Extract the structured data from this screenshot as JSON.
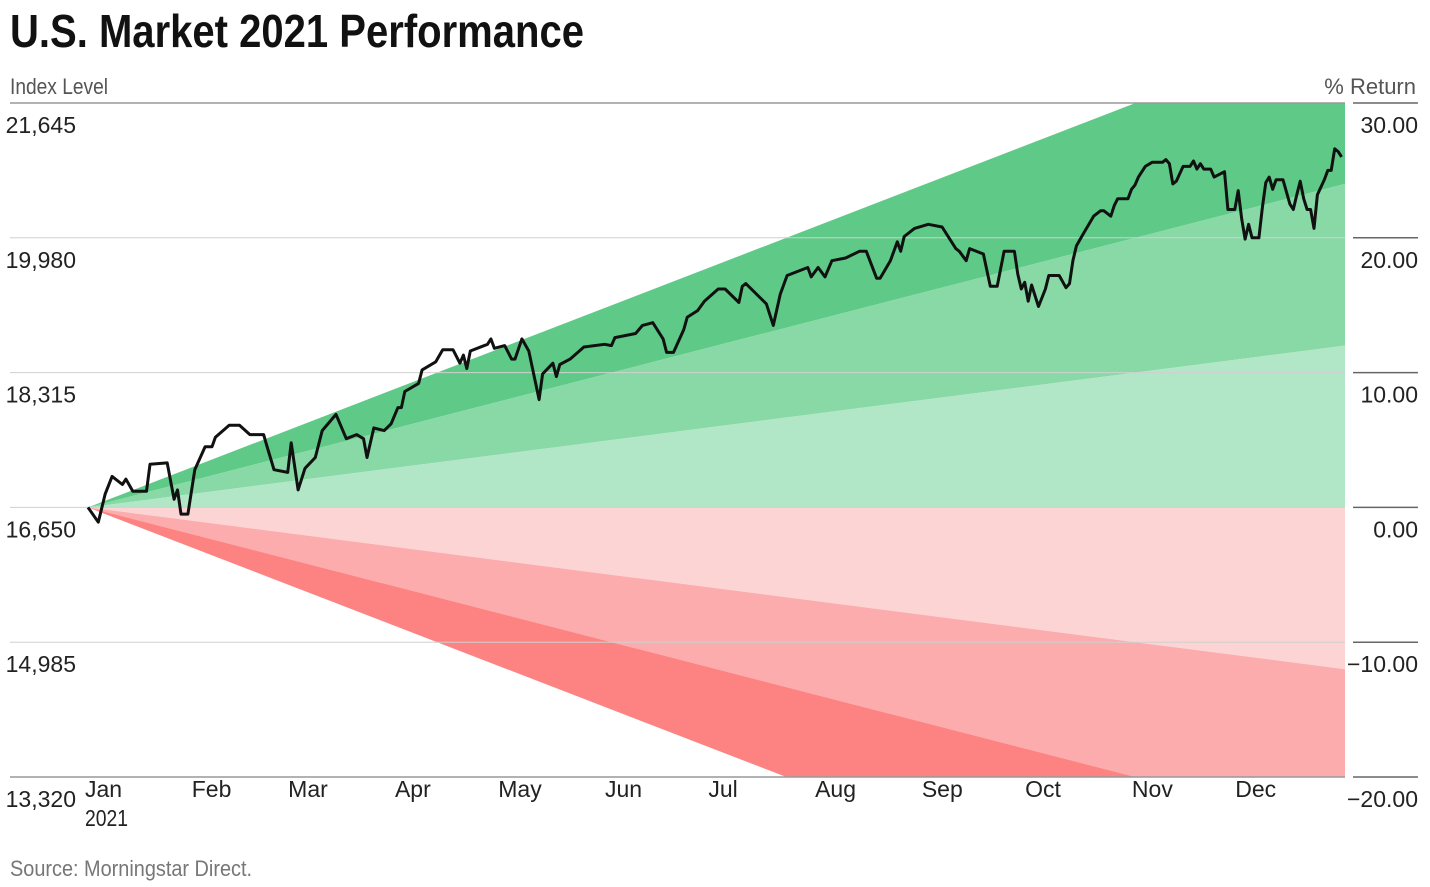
{
  "chart_data": {
    "type": "line",
    "title": "U.S. Market 2021 Performance",
    "ylabel_left": "Index Level",
    "ylabel_right": "% Return",
    "source": "Source: Morningstar Direct.",
    "x_tick_labels": [
      "Jan",
      "Feb",
      "Mar",
      "Apr",
      "May",
      "Jun",
      "Jul",
      "Aug",
      "Sep",
      "Oct",
      "Nov",
      "Dec"
    ],
    "x_tick_dates": [
      "2021-01-01",
      "2021-02-01",
      "2021-03-01",
      "2021-04-01",
      "2021-05-01",
      "2021-06-01",
      "2021-07-01",
      "2021-08-01",
      "2021-09-01",
      "2021-10-01",
      "2021-11-01",
      "2021-12-01"
    ],
    "x_year_label": "2021",
    "xlim": [
      "2021-01-01",
      "2021-12-31"
    ],
    "ylim_pct": [
      -20,
      30
    ],
    "left_ticks": [
      "21,645",
      "19,980",
      "18,315",
      "16,650",
      "14,985",
      "13,320"
    ],
    "right_ticks": [
      "30.00",
      "20.00",
      "10.00",
      "0.00",
      "−10.00",
      "−20.00"
    ],
    "tick_pct": [
      30,
      20,
      10,
      0,
      -10,
      -20
    ],
    "grid": true,
    "bands_end_pct": {
      "green": [
        36,
        24,
        12,
        0
      ],
      "red": [
        0,
        -12,
        -24,
        -36
      ]
    },
    "colors": {
      "green": [
        "#5fca87",
        "#88d9a6",
        "#b1e6c6"
      ],
      "red": [
        "#fdd4d4",
        "#fcacac",
        "#fd8383"
      ],
      "line": "#111111",
      "grid": "#d0d0d0",
      "axis": "#888888"
    },
    "series": [
      {
        "points": [
          [
            "2021-01-01",
            0.0
          ],
          [
            "2021-01-04",
            -1.1
          ],
          [
            "2021-01-06",
            1.0
          ],
          [
            "2021-01-08",
            2.3
          ],
          [
            "2021-01-11",
            1.7
          ],
          [
            "2021-01-12",
            2.1
          ],
          [
            "2021-01-14",
            1.2
          ],
          [
            "2021-01-18",
            1.2
          ],
          [
            "2021-01-19",
            3.2
          ],
          [
            "2021-01-24",
            3.3
          ],
          [
            "2021-01-26",
            0.6
          ],
          [
            "2021-01-27",
            1.3
          ],
          [
            "2021-01-28",
            -0.5
          ],
          [
            "2021-01-30",
            -0.5
          ],
          [
            "2021-02-01",
            2.8
          ],
          [
            "2021-02-04",
            4.5
          ],
          [
            "2021-02-06",
            4.5
          ],
          [
            "2021-02-07",
            5.2
          ],
          [
            "2021-02-11",
            6.1
          ],
          [
            "2021-02-14",
            6.1
          ],
          [
            "2021-02-17",
            5.4
          ],
          [
            "2021-02-21",
            5.4
          ],
          [
            "2021-02-22",
            4.5
          ],
          [
            "2021-02-24",
            2.8
          ],
          [
            "2021-02-28",
            2.6
          ],
          [
            "2021-03-01",
            4.8
          ],
          [
            "2021-03-03",
            1.3
          ],
          [
            "2021-03-05",
            2.9
          ],
          [
            "2021-03-08",
            3.7
          ],
          [
            "2021-03-10",
            5.7
          ],
          [
            "2021-03-14",
            6.9
          ],
          [
            "2021-03-17",
            5.1
          ],
          [
            "2021-03-20",
            5.4
          ],
          [
            "2021-03-22",
            5.1
          ],
          [
            "2021-03-23",
            3.7
          ],
          [
            "2021-03-25",
            5.9
          ],
          [
            "2021-03-28",
            5.7
          ],
          [
            "2021-03-30",
            6.2
          ],
          [
            "2021-04-01",
            7.4
          ],
          [
            "2021-04-02",
            7.4
          ],
          [
            "2021-04-03",
            8.6
          ],
          [
            "2021-04-07",
            9.2
          ],
          [
            "2021-04-08",
            10.2
          ],
          [
            "2021-04-12",
            10.8
          ],
          [
            "2021-04-14",
            11.7
          ],
          [
            "2021-04-17",
            11.7
          ],
          [
            "2021-04-19",
            10.7
          ],
          [
            "2021-04-20",
            11.3
          ],
          [
            "2021-04-21",
            10.3
          ],
          [
            "2021-04-22",
            11.6
          ],
          [
            "2021-04-27",
            12.1
          ],
          [
            "2021-04-28",
            12.5
          ],
          [
            "2021-04-29",
            11.8
          ],
          [
            "2021-05-02",
            12.0
          ],
          [
            "2021-05-04",
            11.0
          ],
          [
            "2021-05-05",
            11.0
          ],
          [
            "2021-05-07",
            12.5
          ],
          [
            "2021-05-09",
            11.6
          ],
          [
            "2021-05-12",
            8.0
          ],
          [
            "2021-05-13",
            9.9
          ],
          [
            "2021-05-16",
            10.7
          ],
          [
            "2021-05-17",
            9.7
          ],
          [
            "2021-05-18",
            10.6
          ],
          [
            "2021-05-21",
            11.0
          ],
          [
            "2021-05-25",
            11.9
          ],
          [
            "2021-05-31",
            12.1
          ],
          [
            "2021-06-02",
            12.0
          ],
          [
            "2021-06-03",
            12.6
          ],
          [
            "2021-06-09",
            12.9
          ],
          [
            "2021-06-11",
            13.5
          ],
          [
            "2021-06-14",
            13.7
          ],
          [
            "2021-06-17",
            12.5
          ],
          [
            "2021-06-18",
            11.5
          ],
          [
            "2021-06-20",
            11.5
          ],
          [
            "2021-06-23",
            13.2
          ],
          [
            "2021-06-24",
            14.1
          ],
          [
            "2021-06-27",
            14.6
          ],
          [
            "2021-06-29",
            15.3
          ],
          [
            "2021-07-03",
            16.2
          ],
          [
            "2021-07-05",
            16.2
          ],
          [
            "2021-07-09",
            15.2
          ],
          [
            "2021-07-10",
            16.4
          ],
          [
            "2021-07-11",
            16.6
          ],
          [
            "2021-07-17",
            15.1
          ],
          [
            "2021-07-19",
            13.5
          ],
          [
            "2021-07-21",
            15.8
          ],
          [
            "2021-07-23",
            17.2
          ],
          [
            "2021-07-26",
            17.5
          ],
          [
            "2021-07-29",
            17.8
          ],
          [
            "2021-07-30",
            17.1
          ],
          [
            "2021-08-01",
            17.8
          ],
          [
            "2021-08-03",
            17.1
          ],
          [
            "2021-08-05",
            18.3
          ],
          [
            "2021-08-09",
            18.5
          ],
          [
            "2021-08-13",
            19.0
          ],
          [
            "2021-08-15",
            19.0
          ],
          [
            "2021-08-18",
            17.0
          ],
          [
            "2021-08-19",
            17.0
          ],
          [
            "2021-08-22",
            18.3
          ],
          [
            "2021-08-24",
            19.7
          ],
          [
            "2021-08-25",
            19.0
          ],
          [
            "2021-08-26",
            20.1
          ],
          [
            "2021-08-29",
            20.7
          ],
          [
            "2021-09-02",
            21.0
          ],
          [
            "2021-09-06",
            20.8
          ],
          [
            "2021-09-10",
            19.2
          ],
          [
            "2021-09-11",
            19.0
          ],
          [
            "2021-09-13",
            18.3
          ],
          [
            "2021-09-14",
            19.2
          ],
          [
            "2021-09-18",
            18.8
          ],
          [
            "2021-09-20",
            16.4
          ],
          [
            "2021-09-22",
            16.4
          ],
          [
            "2021-09-24",
            19.0
          ],
          [
            "2021-09-27",
            19.0
          ],
          [
            "2021-09-28",
            17.3
          ],
          [
            "2021-09-29",
            16.2
          ],
          [
            "2021-09-30",
            16.7
          ],
          [
            "2021-10-01",
            15.3
          ],
          [
            "2021-10-02",
            16.5
          ],
          [
            "2021-10-04",
            14.9
          ],
          [
            "2021-10-06",
            16.2
          ],
          [
            "2021-10-07",
            17.2
          ],
          [
            "2021-10-10",
            17.2
          ],
          [
            "2021-10-12",
            16.3
          ],
          [
            "2021-10-13",
            16.6
          ],
          [
            "2021-10-14",
            18.3
          ],
          [
            "2021-10-15",
            19.4
          ],
          [
            "2021-10-17",
            20.3
          ],
          [
            "2021-10-20",
            21.6
          ],
          [
            "2021-10-22",
            22.0
          ],
          [
            "2021-10-23",
            22.0
          ],
          [
            "2021-10-25",
            21.6
          ],
          [
            "2021-10-26",
            22.4
          ],
          [
            "2021-10-27",
            22.9
          ],
          [
            "2021-10-30",
            22.9
          ],
          [
            "2021-10-31",
            23.6
          ],
          [
            "2021-11-01",
            23.9
          ],
          [
            "2021-11-02",
            24.5
          ],
          [
            "2021-11-04",
            25.3
          ],
          [
            "2021-11-06",
            25.6
          ],
          [
            "2021-11-09",
            25.6
          ],
          [
            "2021-11-10",
            25.8
          ],
          [
            "2021-11-11",
            25.5
          ],
          [
            "2021-11-12",
            24.0
          ],
          [
            "2021-11-13",
            24.2
          ],
          [
            "2021-11-15",
            25.3
          ],
          [
            "2021-11-17",
            25.3
          ],
          [
            "2021-11-18",
            25.7
          ],
          [
            "2021-11-19",
            25.1
          ],
          [
            "2021-11-20",
            25.5
          ],
          [
            "2021-11-21",
            25.1
          ],
          [
            "2021-11-23",
            25.1
          ],
          [
            "2021-11-24",
            24.5
          ],
          [
            "2021-11-27",
            24.9
          ],
          [
            "2021-11-28",
            22.1
          ],
          [
            "2021-11-30",
            22.1
          ],
          [
            "2021-12-01",
            23.5
          ],
          [
            "2021-12-02",
            21.4
          ],
          [
            "2021-12-03",
            19.9
          ],
          [
            "2021-12-04",
            21.0
          ],
          [
            "2021-12-05",
            20.0
          ],
          [
            "2021-12-07",
            20.0
          ],
          [
            "2021-12-08",
            22.2
          ],
          [
            "2021-12-09",
            24.1
          ],
          [
            "2021-12-10",
            24.5
          ],
          [
            "2021-12-11",
            23.6
          ],
          [
            "2021-12-12",
            24.3
          ],
          [
            "2021-12-14",
            24.3
          ],
          [
            "2021-12-16",
            22.5
          ],
          [
            "2021-12-17",
            22.1
          ],
          [
            "2021-12-18",
            23.2
          ],
          [
            "2021-12-19",
            24.2
          ],
          [
            "2021-12-20",
            22.9
          ],
          [
            "2021-12-21",
            22.1
          ],
          [
            "2021-12-22",
            22.1
          ],
          [
            "2021-12-23",
            20.7
          ],
          [
            "2021-12-24",
            23.2
          ],
          [
            "2021-12-26",
            24.3
          ],
          [
            "2021-12-27",
            25.0
          ],
          [
            "2021-12-28",
            25.0
          ],
          [
            "2021-12-29",
            26.6
          ],
          [
            "2021-12-30",
            26.4
          ],
          [
            "2021-12-31",
            26.0
          ]
        ]
      }
    ]
  }
}
